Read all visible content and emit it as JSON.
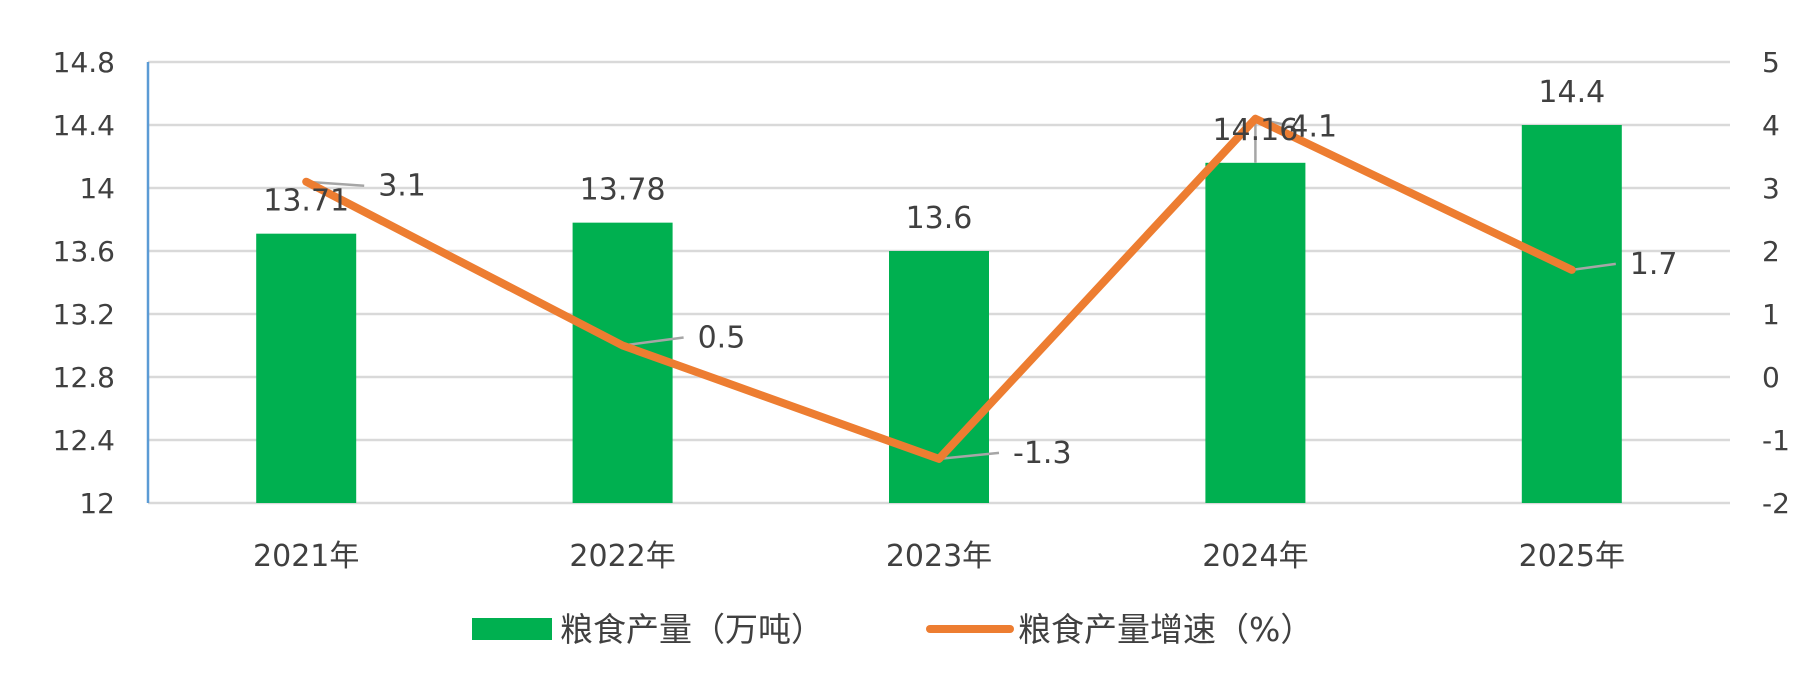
{
  "chart_data": {
    "type": "bar",
    "categories": [
      "2021年",
      "2022年",
      "2023年",
      "2024年",
      "2025年"
    ],
    "series": [
      {
        "name": "粮食产量（万吨）",
        "type": "bar",
        "axis": "left",
        "values": [
          13.71,
          13.78,
          13.6,
          14.16,
          14.4
        ],
        "color": "#00B050"
      },
      {
        "name": "粮食产量增速（%）",
        "type": "line",
        "axis": "right",
        "values": [
          3.1,
          0.5,
          -1.3,
          4.1,
          1.7
        ],
        "color": "#ED7D31"
      }
    ],
    "y_left": {
      "min": 12,
      "max": 14.8,
      "step": 0.4,
      "ticks": [
        "12",
        "12.4",
        "12.8",
        "13.2",
        "13.6",
        "14",
        "14.4",
        "14.8"
      ]
    },
    "y_right": {
      "min": -2,
      "max": 5,
      "step": 1,
      "ticks": [
        "-2",
        "-1",
        "0",
        "1",
        "2",
        "3",
        "4",
        "5"
      ]
    },
    "grid": true,
    "legend_position": "bottom",
    "colors": {
      "grid": "#D9D9D9",
      "left_axis": "#5B9BD5",
      "leader": "#A6A6A6",
      "text": "#404040"
    }
  }
}
